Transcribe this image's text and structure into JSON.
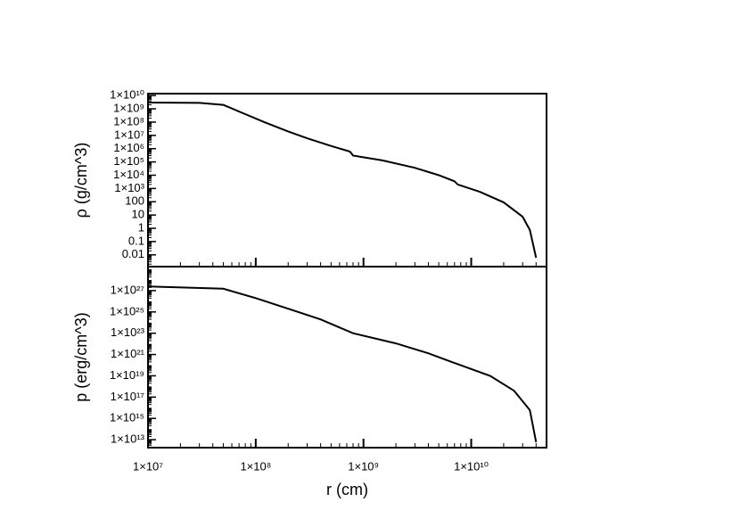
{
  "chart_data": [
    {
      "type": "line",
      "ylabel": "ρ (g/cm^3)",
      "xlog": true,
      "ylog": true,
      "xlim": [
        10000000.0,
        50000000000.0
      ],
      "ylim": [
        0.0013,
        14000000000.0
      ],
      "xticks": [
        10000000.0,
        100000000.0,
        1000000000.0,
        10000000000.0
      ],
      "yticks": [
        {
          "value": 10000000000.0,
          "label": "1×10¹⁰"
        },
        {
          "value": 1000000000.0,
          "label": "1×10⁹"
        },
        {
          "value": 100000000.0,
          "label": "1×10⁸"
        },
        {
          "value": 10000000.0,
          "label": "1×10⁷"
        },
        {
          "value": 1000000.0,
          "label": "1×10⁶"
        },
        {
          "value": 100000.0,
          "label": "1×10⁵"
        },
        {
          "value": 10000.0,
          "label": "1×10⁴"
        },
        {
          "value": 1000.0,
          "label": "1×10³"
        },
        100,
        10,
        1,
        0.1,
        0.01
      ],
      "series": [
        {
          "color": "#000000",
          "x": [
            10000000.0,
            30000000.0,
            50000000.0,
            80000000.0,
            120000000.0,
            200000000.0,
            300000000.0,
            500000000.0,
            750000000.0,
            800000000.0,
            1500000000.0,
            3000000000.0,
            5000000000.0,
            7000000000.0,
            7500000000.0,
            12000000000.0,
            20000000000.0,
            30000000000.0,
            35000000000.0,
            40000000000.0
          ],
          "values": [
            3000000000.0,
            2800000000.0,
            2000000000.0,
            400000000.0,
            100000000.0,
            20000000.0,
            6000000.0,
            1600000.0,
            600000.0,
            300000.0,
            130000.0,
            36000.0,
            10000.0,
            3500,
            2000,
            560,
            90,
            7.4,
            0.75,
            0.006
          ]
        }
      ]
    },
    {
      "type": "line",
      "ylabel": "p (erg/cm^3)",
      "xlabel": "r (cm)",
      "xlog": true,
      "ylog": true,
      "xlim": [
        10000000.0,
        50000000000.0
      ],
      "ylim": [
        1800000000000.0,
        1.8e+29
      ],
      "xticks": [
        {
          "value": 10000000.0,
          "label": "1×10⁷"
        },
        {
          "value": 100000000.0,
          "label": "1×10⁸"
        },
        {
          "value": 1000000000.0,
          "label": "1×10⁹"
        },
        {
          "value": 10000000000.0,
          "label": "1×10¹⁰"
        }
      ],
      "yticks": [
        {
          "value": 1e+27,
          "label": "1×10²⁷"
        },
        {
          "value": 1e+25,
          "label": "1×10²⁵"
        },
        {
          "value": 1e+23,
          "label": "1×10²³"
        },
        {
          "value": 1e+21,
          "label": "1×10²¹"
        },
        {
          "value": 1e+19,
          "label": "1×10¹⁹"
        },
        {
          "value": 1e+17,
          "label": "1×10¹⁷"
        },
        {
          "value": 1000000000000000.0,
          "label": "1×10¹⁵"
        },
        {
          "value": 10000000000000.0,
          "label": "1×10¹³"
        }
      ],
      "series": [
        {
          "color": "#000000",
          "x": [
            10000000.0,
            50000000.0,
            100000000.0,
            200000000.0,
            400000000.0,
            800000000.0,
            2000000000.0,
            4000000000.0,
            7000000000.0,
            15000000000.0,
            25000000000.0,
            35000000000.0,
            40000000000.0
          ],
          "values": [
            2.5e+27,
            1.5e+27,
            2e+26,
            2e+25,
            2e+24,
            1e+23,
            1.1e+22,
            1.3e+21,
            1.6e+20,
            1e+19,
            4e+17,
            6000000000000000.0,
            6000000000000.0
          ]
        }
      ]
    }
  ]
}
